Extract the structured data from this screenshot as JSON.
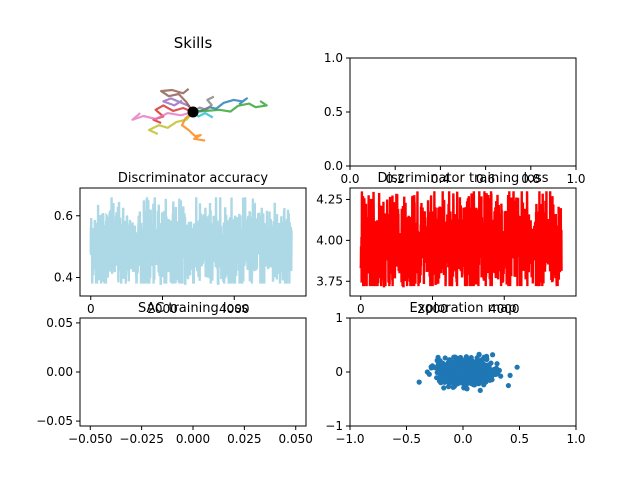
{
  "chart_data": [
    {
      "id": "skills",
      "type": "line",
      "title": "Skills",
      "axes_visible": false,
      "series": [
        {
          "color": "#1f77b4",
          "values": [
            [
              0,
              0
            ],
            [
              0.35,
              0.05
            ],
            [
              0.75,
              0.22
            ],
            [
              1.05,
              0.15
            ],
            [
              1.4,
              0.42
            ],
            [
              1.85,
              0.55
            ],
            [
              2.25,
              0.48
            ],
            [
              2.45,
              0.62
            ],
            [
              2.1,
              0.35
            ]
          ]
        },
        {
          "color": "#ff7f0e",
          "values": [
            [
              0,
              0
            ],
            [
              -0.35,
              -0.3
            ],
            [
              -0.5,
              -0.6
            ],
            [
              -0.2,
              -0.82
            ],
            [
              0.1,
              -1.1
            ],
            [
              0.35,
              -1.05
            ],
            [
              0.05,
              -1.22
            ],
            [
              0.55,
              -1.3
            ]
          ]
        },
        {
          "color": "#2ca02c",
          "values": [
            [
              0,
              0
            ],
            [
              0.6,
              0.05
            ],
            [
              1.2,
              0.1
            ],
            [
              1.7,
              0.02
            ],
            [
              2.05,
              0.28
            ],
            [
              2.55,
              0.38
            ],
            [
              2.85,
              0.22
            ],
            [
              3.35,
              0.3
            ],
            [
              3.05,
              0.5
            ]
          ]
        },
        {
          "color": "#d62728",
          "values": [
            [
              0,
              0
            ],
            [
              -0.45,
              0.18
            ],
            [
              -0.9,
              0.05
            ],
            [
              -1.35,
              0.3
            ],
            [
              -1.7,
              0.1
            ],
            [
              -1.35,
              -0.2
            ],
            [
              -1.8,
              -0.35
            ],
            [
              -1.45,
              -0.5
            ]
          ]
        },
        {
          "color": "#9467bd",
          "values": [
            [
              0,
              0
            ],
            [
              -0.2,
              0.28
            ],
            [
              -0.6,
              0.45
            ],
            [
              -1.0,
              0.62
            ],
            [
              -1.35,
              0.48
            ],
            [
              -0.85,
              0.3
            ],
            [
              -0.5,
              0.52
            ]
          ]
        },
        {
          "color": "#8c564b",
          "values": [
            [
              0,
              0
            ],
            [
              -0.3,
              0.45
            ],
            [
              -0.65,
              0.82
            ],
            [
              -1.1,
              0.72
            ],
            [
              -1.45,
              0.95
            ],
            [
              -0.95,
              1.0
            ],
            [
              -0.45,
              0.85
            ],
            [
              -0.2,
              1.05
            ]
          ]
        },
        {
          "color": "#e377c2",
          "values": [
            [
              0,
              0
            ],
            [
              -0.55,
              -0.15
            ],
            [
              -1.15,
              -0.05
            ],
            [
              -1.7,
              -0.32
            ],
            [
              -2.25,
              -0.18
            ],
            [
              -2.75,
              -0.35
            ],
            [
              -2.4,
              -0.05
            ]
          ]
        },
        {
          "color": "#7f7f7f",
          "values": [
            [
              0,
              0
            ],
            [
              0.3,
              0.2
            ],
            [
              0.6,
              0.1
            ],
            [
              0.85,
              0.32
            ],
            [
              0.65,
              0.55
            ],
            [
              0.95,
              0.7
            ]
          ]
        },
        {
          "color": "#bcbd22",
          "values": [
            [
              0,
              0
            ],
            [
              -0.3,
              -0.35
            ],
            [
              -0.75,
              -0.45
            ],
            [
              -1.15,
              -0.72
            ],
            [
              -1.55,
              -0.6
            ],
            [
              -2.0,
              -0.82
            ],
            [
              -1.6,
              -1.0
            ]
          ]
        },
        {
          "color": "#17becf",
          "values": [
            [
              0,
              0
            ],
            [
              0.25,
              -0.2
            ],
            [
              0.55,
              -0.05
            ],
            [
              0.9,
              -0.25
            ]
          ]
        }
      ],
      "start_point": {
        "x": 0,
        "y": 0,
        "color": "#000000"
      }
    },
    {
      "id": "empty-top-right",
      "type": "line",
      "title": "",
      "xlim": [
        0.0,
        1.0
      ],
      "ylim": [
        0.0,
        1.0
      ],
      "xticks": [
        "0.0",
        "0.2",
        "0.4",
        "0.6",
        "0.8",
        "1.0"
      ],
      "yticks": [
        "0.0",
        "0.5",
        "1.0"
      ],
      "series": []
    },
    {
      "id": "discriminator-accuracy",
      "type": "line",
      "title": "Discriminator accuracy",
      "color": "#add8e6",
      "xlim": [
        -300,
        6000
      ],
      "ylim": [
        0.34,
        0.69
      ],
      "xticks": [
        "0",
        "2000",
        "4000"
      ],
      "yticks": [
        "0.4",
        "0.6"
      ],
      "n_points": 5600,
      "mean": 0.5,
      "band": [
        0.38,
        0.66
      ]
    },
    {
      "id": "discriminator-training-loss",
      "type": "line",
      "title": "Discriminator training loss",
      "color": "#ff0000",
      "xlim": [
        -300,
        6000
      ],
      "ylim": [
        3.66,
        4.32
      ],
      "xticks": [
        "0",
        "2000",
        "4000"
      ],
      "yticks": [
        "3.75",
        "4.00",
        "4.25"
      ],
      "n_points": 5600,
      "mean": 3.97,
      "band": [
        3.72,
        4.3
      ]
    },
    {
      "id": "sac-training-loss",
      "type": "line",
      "title": "SAC training loss",
      "xlim": [
        -0.055,
        0.055
      ],
      "ylim": [
        -0.055,
        0.055
      ],
      "xticks": [
        "−0.050",
        "−0.025",
        "0.000",
        "0.025",
        "0.050"
      ],
      "yticks": [
        "−0.05",
        "0.00",
        "0.05"
      ],
      "series": []
    },
    {
      "id": "exploration-map",
      "type": "scatter",
      "title": "Exploration map",
      "color": "#1f77b4",
      "xlim": [
        -1.0,
        1.0
      ],
      "ylim": [
        -1.0,
        1.0
      ],
      "xticks": [
        "−1.0",
        "−0.5",
        "0.0",
        "0.5",
        "1.0"
      ],
      "yticks": [
        "−1",
        "0",
        "1"
      ],
      "n_points": 800,
      "center": [
        0.02,
        0.0
      ],
      "spread": [
        0.12,
        0.11
      ]
    }
  ]
}
